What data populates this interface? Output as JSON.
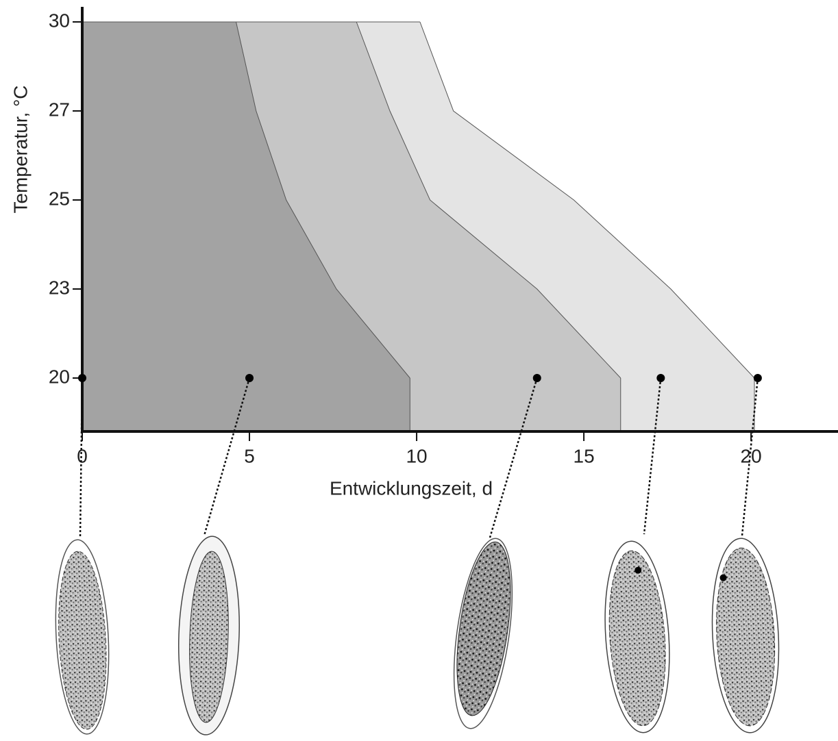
{
  "chart_data": {
    "type": "band",
    "y_label": "Temperatur, °C",
    "x_label": "Entwicklungszeit, d",
    "categories": [
      "20",
      "23",
      "25",
      "27",
      "30"
    ],
    "xlim": [
      0,
      22.6
    ],
    "xticks": [
      0,
      5,
      10,
      15,
      20
    ],
    "series": [
      {
        "color": "#a3a3a3",
        "values": [
          9.8,
          7.6,
          6.1,
          5.2,
          4.6
        ]
      },
      {
        "color": "#c6c6c6",
        "values": [
          16.1,
          13.6,
          10.4,
          9.2,
          8.2
        ]
      },
      {
        "color": "#e4e4e4",
        "values": [
          20.1,
          17.6,
          14.7,
          11.1,
          10.1
        ]
      }
    ],
    "markers": {
      "x": [
        0,
        5,
        13.6,
        17.3,
        20.2
      ]
    }
  }
}
